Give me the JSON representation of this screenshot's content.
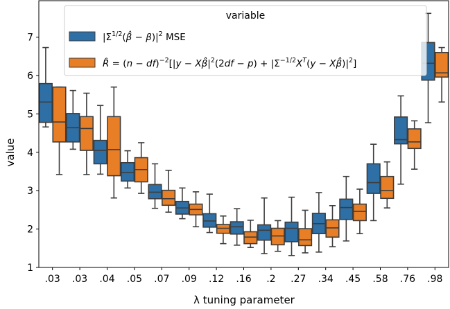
{
  "chart_data": {
    "type": "box",
    "title": "",
    "xlabel": "λ tuning parameter",
    "ylabel": "value",
    "ylim": [
      1,
      7.95
    ],
    "yticks": [
      1,
      2,
      3,
      4,
      5,
      6,
      7
    ],
    "categories": [
      ".03",
      ".03",
      ".04",
      ".05",
      ".07",
      ".09",
      ".12",
      ".16",
      ".2",
      ".27",
      ".34",
      ".45",
      ".58",
      ".76",
      ".98"
    ],
    "legend": {
      "title": "variable",
      "placement": "top-center",
      "entries": [
        "|Σ^{1/2}(β̂ − β)|² MSE",
        "R̂ = (n − df)^{−2}[|y − Xβ̂|²(2df − p) + |Σ^{−1/2}X^T(y − Xβ̂)|²]"
      ]
    },
    "series": [
      {
        "name": "|Σ^{1/2}(β̂ − β)|² MSE",
        "color": "#1f77b4",
        "boxes": [
          {
            "whislo": 4.66,
            "q1": 4.78,
            "med": 5.31,
            "q3": 5.79,
            "whishi": 6.73
          },
          {
            "whislo": 4.08,
            "q1": 4.27,
            "med": 4.64,
            "q3": 5.01,
            "whishi": 5.61
          },
          {
            "whislo": 3.43,
            "q1": 3.7,
            "med": 4.05,
            "q3": 4.31,
            "whishi": 5.22
          },
          {
            "whislo": 3.07,
            "q1": 3.25,
            "med": 3.47,
            "q3": 3.73,
            "whishi": 4.04
          },
          {
            "whislo": 2.54,
            "q1": 2.79,
            "med": 2.96,
            "q3": 3.16,
            "whishi": 3.7
          },
          {
            "whislo": 2.27,
            "q1": 2.39,
            "med": 2.55,
            "q3": 2.72,
            "whishi": 3.07
          },
          {
            "whislo": 1.91,
            "q1": 2.05,
            "med": 2.21,
            "q3": 2.4,
            "whishi": 2.91
          },
          {
            "whislo": 1.58,
            "q1": 1.87,
            "med": 2.06,
            "q3": 2.19,
            "whishi": 2.53
          },
          {
            "whislo": 1.36,
            "q1": 1.71,
            "med": 1.97,
            "q3": 2.11,
            "whishi": 2.81
          },
          {
            "whislo": 1.31,
            "q1": 1.67,
            "med": 2.02,
            "q3": 2.18,
            "whishi": 2.83
          },
          {
            "whislo": 1.4,
            "q1": 1.88,
            "med": 2.14,
            "q3": 2.41,
            "whishi": 2.95
          },
          {
            "whislo": 1.69,
            "q1": 2.25,
            "med": 2.56,
            "q3": 2.78,
            "whishi": 3.37
          },
          {
            "whislo": 2.22,
            "q1": 2.93,
            "med": 3.21,
            "q3": 3.7,
            "whishi": 4.21
          },
          {
            "whislo": 3.17,
            "q1": 4.22,
            "med": 4.33,
            "q3": 4.92,
            "whishi": 5.47
          },
          {
            "whislo": 4.77,
            "q1": 5.88,
            "med": 6.32,
            "q3": 6.86,
            "whishi": 7.62
          }
        ]
      },
      {
        "name": "R̂ = (n − df)^{−2}[|y − Xβ̂|²(2df − p) + |Σ^{−1/2}X^T(y − Xβ̂)|²]",
        "color": "#ff7f0e",
        "boxes": [
          {
            "whislo": 3.42,
            "q1": 4.27,
            "med": 4.79,
            "q3": 5.7,
            "whishi": 5.7
          },
          {
            "whislo": 3.42,
            "q1": 4.05,
            "med": 4.62,
            "q3": 4.93,
            "whishi": 5.54
          },
          {
            "whislo": 2.81,
            "q1": 3.39,
            "med": 4.07,
            "q3": 4.93,
            "whishi": 5.7
          },
          {
            "whislo": 2.93,
            "q1": 3.23,
            "med": 3.55,
            "q3": 3.86,
            "whishi": 4.25
          },
          {
            "whislo": 2.44,
            "q1": 2.62,
            "med": 2.79,
            "q3": 3.01,
            "whishi": 3.53
          },
          {
            "whislo": 2.06,
            "q1": 2.37,
            "med": 2.51,
            "q3": 2.65,
            "whishi": 2.97
          },
          {
            "whislo": 1.62,
            "q1": 1.89,
            "med": 2.02,
            "q3": 2.12,
            "whishi": 2.34
          },
          {
            "whislo": 1.52,
            "q1": 1.62,
            "med": 1.79,
            "q3": 1.93,
            "whishi": 2.23
          },
          {
            "whislo": 1.42,
            "q1": 1.59,
            "med": 1.82,
            "q3": 2.02,
            "whishi": 2.22
          },
          {
            "whislo": 1.38,
            "q1": 1.57,
            "med": 1.72,
            "q3": 2.01,
            "whishi": 2.49
          },
          {
            "whislo": 1.54,
            "q1": 1.79,
            "med": 2.03,
            "q3": 2.24,
            "whishi": 2.61
          },
          {
            "whislo": 1.88,
            "q1": 2.22,
            "med": 2.46,
            "q3": 2.65,
            "whishi": 3.04
          },
          {
            "whislo": 2.55,
            "q1": 2.8,
            "med": 3.0,
            "q3": 3.37,
            "whishi": 3.75
          },
          {
            "whislo": 3.56,
            "q1": 4.1,
            "med": 4.27,
            "q3": 4.61,
            "whishi": 4.82
          },
          {
            "whislo": 5.31,
            "q1": 5.96,
            "med": 6.07,
            "q3": 6.6,
            "whishi": 6.73
          }
        ]
      }
    ],
    "grid": false
  }
}
